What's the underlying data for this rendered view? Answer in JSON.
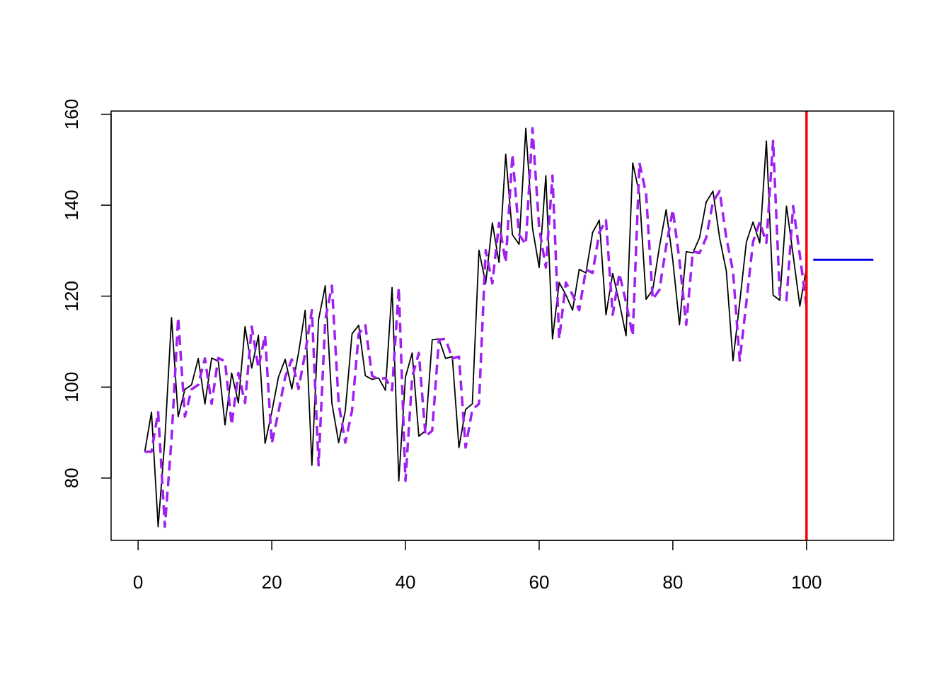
{
  "chart_data": {
    "type": "line",
    "title": "",
    "xlabel": "",
    "ylabel": "",
    "xlim": [
      -4.04,
      113.04
    ],
    "ylim": [
      66.3,
      160.7
    ],
    "x_ticks": [
      0,
      20,
      40,
      60,
      80,
      100
    ],
    "x_tick_labels": [
      "0",
      "20",
      "40",
      "60",
      "80",
      "100"
    ],
    "y_ticks": [
      80,
      100,
      120,
      140,
      160
    ],
    "y_tick_labels": [
      "80",
      "100",
      "120",
      "140",
      "160"
    ],
    "grid": false,
    "legend": "none",
    "series": [
      {
        "style": "solid",
        "color": "#000000",
        "x_start": 1,
        "values": [
          85.8,
          94.5,
          69.3,
          88.5,
          115.3,
          93.5,
          99.5,
          100.5,
          106.3,
          96.3,
          106.4,
          105.7,
          91.7,
          103.1,
          96.5,
          113.3,
          104.2,
          111.4,
          87.6,
          94.5,
          102.2,
          106.1,
          99.6,
          107.5,
          116.9,
          82.8,
          114.8,
          122.3,
          96.4,
          87.8,
          94.8,
          111.7,
          113.6,
          102.5,
          101.7,
          102.0,
          99.3,
          121.9,
          79.4,
          102.2,
          107.5,
          89.2,
          90.4,
          110.4,
          110.6,
          106.3,
          106.7,
          86.7,
          95.1,
          96.3,
          130.1,
          122.8,
          136.1,
          127.4,
          151.2,
          133.5,
          131.4,
          156.9,
          135.0,
          126.3,
          146.5,
          110.6,
          123.0,
          120.3,
          116.9,
          125.9,
          125.1,
          134.0,
          136.7,
          115.9,
          125.0,
          118.6,
          111.3,
          149.3,
          142.5,
          119.3,
          121.4,
          130.9,
          139.0,
          127.8,
          113.7,
          129.8,
          129.5,
          132.9,
          140.7,
          143.1,
          132.8,
          125.5,
          105.8,
          118.6,
          131.9,
          136.3,
          131.7,
          154.1,
          120.2,
          119.1,
          139.8,
          129.0,
          117.8,
          126.3
        ]
      },
      {
        "style": "dashed",
        "color": "#a020f0",
        "x_start": 1,
        "values": [
          85.8,
          85.8,
          94.5,
          69.3,
          88.5,
          115.3,
          93.5,
          99.5,
          100.5,
          106.3,
          96.3,
          106.4,
          105.7,
          91.7,
          103.1,
          96.5,
          113.3,
          104.2,
          111.4,
          87.6,
          94.5,
          102.2,
          106.1,
          99.6,
          107.5,
          116.9,
          82.8,
          114.8,
          122.3,
          96.4,
          87.8,
          94.8,
          111.7,
          113.6,
          102.5,
          101.7,
          102.0,
          99.3,
          121.9,
          79.4,
          102.2,
          107.5,
          89.2,
          90.4,
          110.4,
          110.6,
          106.3,
          106.7,
          86.7,
          95.1,
          96.3,
          130.1,
          122.8,
          136.1,
          127.4,
          151.2,
          133.5,
          131.4,
          156.9,
          135.0,
          126.3,
          146.5,
          110.6,
          123.0,
          120.3,
          116.9,
          125.9,
          125.1,
          134.0,
          136.7,
          115.9,
          125.0,
          118.6,
          111.3,
          149.3,
          142.5,
          119.3,
          121.4,
          130.9,
          139.0,
          127.8,
          113.7,
          129.8,
          129.5,
          132.9,
          140.7,
          143.1,
          132.8,
          125.5,
          105.8,
          118.6,
          131.9,
          136.3,
          131.7,
          154.1,
          120.2,
          119.1,
          139.8,
          129.0,
          117.8
        ]
      },
      {
        "style": "solid",
        "color": "#0000ee",
        "x": [
          101,
          110
        ],
        "values": [
          128.0,
          128.0
        ]
      }
    ],
    "vertical_line": {
      "x": 100,
      "color": "#ff0000"
    },
    "colors": {
      "actual": "#000000",
      "fitted": "#a020f0",
      "forecast": "#0000ee",
      "cutoff": "#ff0000"
    }
  }
}
